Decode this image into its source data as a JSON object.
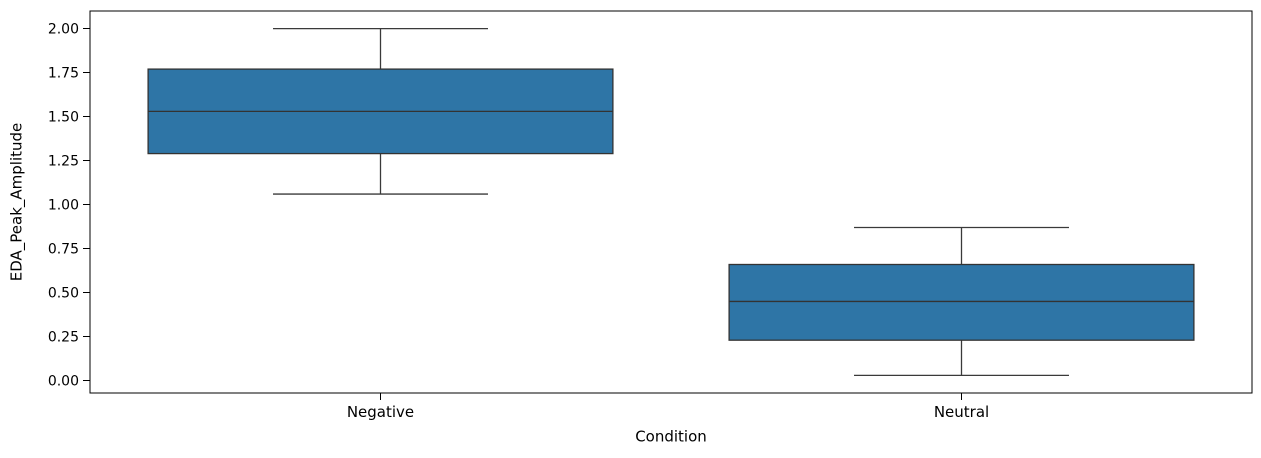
{
  "figure": {
    "background": "#ffffff"
  },
  "chart_data": {
    "type": "boxplot",
    "title": "",
    "xlabel": "Condition",
    "ylabel": "EDA_Peak_Amplitude",
    "categories": [
      "Negative",
      "Neutral"
    ],
    "series": [
      {
        "name": "Negative",
        "whisker_low": 1.06,
        "q1": 1.29,
        "median": 1.53,
        "q3": 1.77,
        "whisker_high": 2.0
      },
      {
        "name": "Neutral",
        "whisker_low": 0.03,
        "q1": 0.23,
        "median": 0.45,
        "q3": 0.66,
        "whisker_high": 0.87
      }
    ],
    "yticks": [
      "0.00",
      "0.25",
      "0.50",
      "0.75",
      "1.00",
      "1.25",
      "1.50",
      "1.75",
      "2.00"
    ],
    "ylim": [
      -0.07,
      2.1
    ],
    "xlim": [
      -0.5,
      1.5
    ],
    "box_width": 0.8,
    "cap_width": 0.37,
    "grid": false,
    "legend": false,
    "colors": {
      "box_fill": "#2e75a6",
      "box_edge": "#333333",
      "whisker": "#3a3a3a",
      "spine": "#000000",
      "tick_text": "#000000"
    }
  }
}
